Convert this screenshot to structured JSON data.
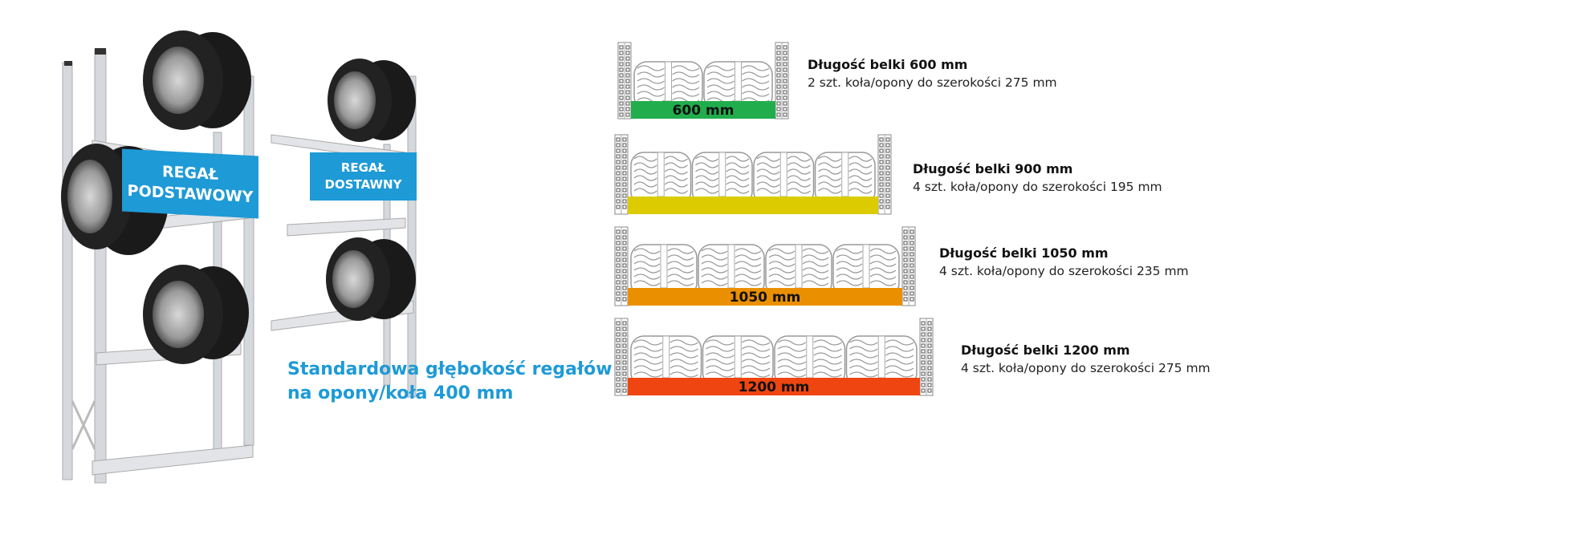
{
  "racks": {
    "base_sign": [
      "REGAŁ",
      "PODSTAWOWY"
    ],
    "extension_sign": [
      "REGAŁ",
      "DOSTAWNY"
    ],
    "sign_color": "#1e9ad6"
  },
  "caption": {
    "line1": "Standardowa głębokość regałów",
    "line2": "na opony/koła 400 mm",
    "color": "#1e9ad6"
  },
  "beams": [
    {
      "title": "Długość belki 600 mm",
      "desc": "2 szt. koła/opony do szerokości 275 mm",
      "bar_label": "600 mm",
      "color": "#22ad4c",
      "tires": 2
    },
    {
      "title": "Długość belki 900 mm",
      "desc": "4 szt. koła/opony do szerokości 195 mm",
      "bar_label": "",
      "color": "#dccb00",
      "tires": 4
    },
    {
      "title": "Długość belki 1050 mm",
      "desc": "4 szt. koła/opony do szerokości 235 mm",
      "bar_label": "1050 mm",
      "color": "#ea9000",
      "tires": 4
    },
    {
      "title": "Długość belki 1200 mm",
      "desc": "4 szt. koła/opony do szerokości 275 mm",
      "bar_label": "1200 mm",
      "color": "#ef4510",
      "tires": 4
    }
  ]
}
